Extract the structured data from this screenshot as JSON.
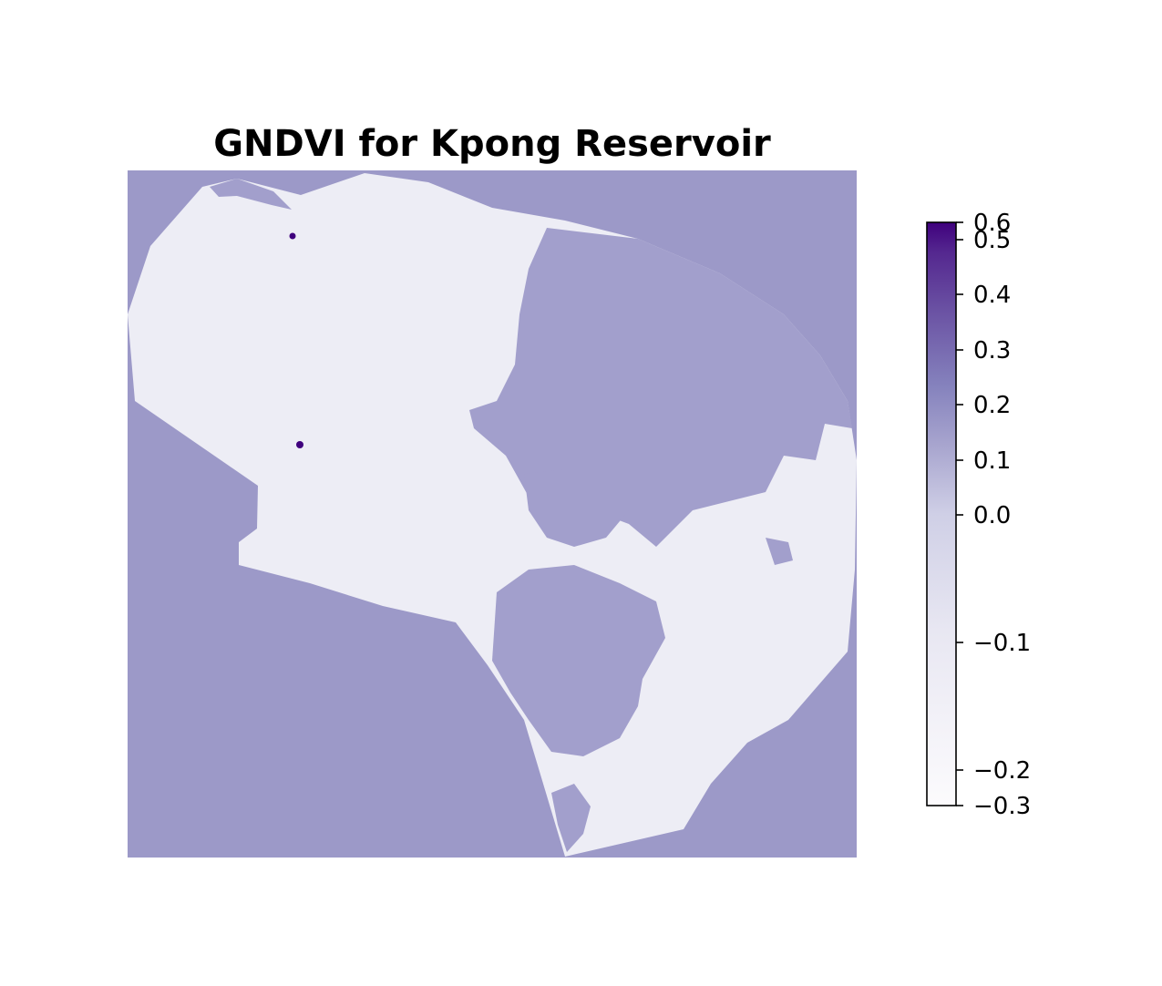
{
  "chart_data": {
    "type": "heatmap",
    "title": "GNDVI for Kpong Reservoir",
    "xlabel": "",
    "ylabel": "",
    "axes_visible": false,
    "grid": false,
    "colormap": "Purples",
    "colorbar": {
      "placement": "right",
      "vmin": -0.3,
      "vmax": 0.6,
      "scale": "nonlinear",
      "ticks": [
        {
          "value": -0.3,
          "label": "−0.3"
        },
        {
          "value": -0.2,
          "label": "−0.2"
        },
        {
          "value": -0.1,
          "label": "−0.1"
        },
        {
          "value": 0.0,
          "label": "0.0"
        },
        {
          "value": 0.1,
          "label": "0.1"
        },
        {
          "value": 0.2,
          "label": "0.2"
        },
        {
          "value": 0.3,
          "label": "0.3"
        },
        {
          "value": 0.4,
          "label": "0.4"
        },
        {
          "value": 0.5,
          "label": "0.5"
        },
        {
          "value": 0.6,
          "label": "0.6"
        }
      ]
    },
    "background_value": 0.15
  },
  "colors": {
    "background_fill": "#9c99c8",
    "region_low": "#ededf5",
    "region_mid": "#a29fcc",
    "region_high": "#3f007d"
  }
}
